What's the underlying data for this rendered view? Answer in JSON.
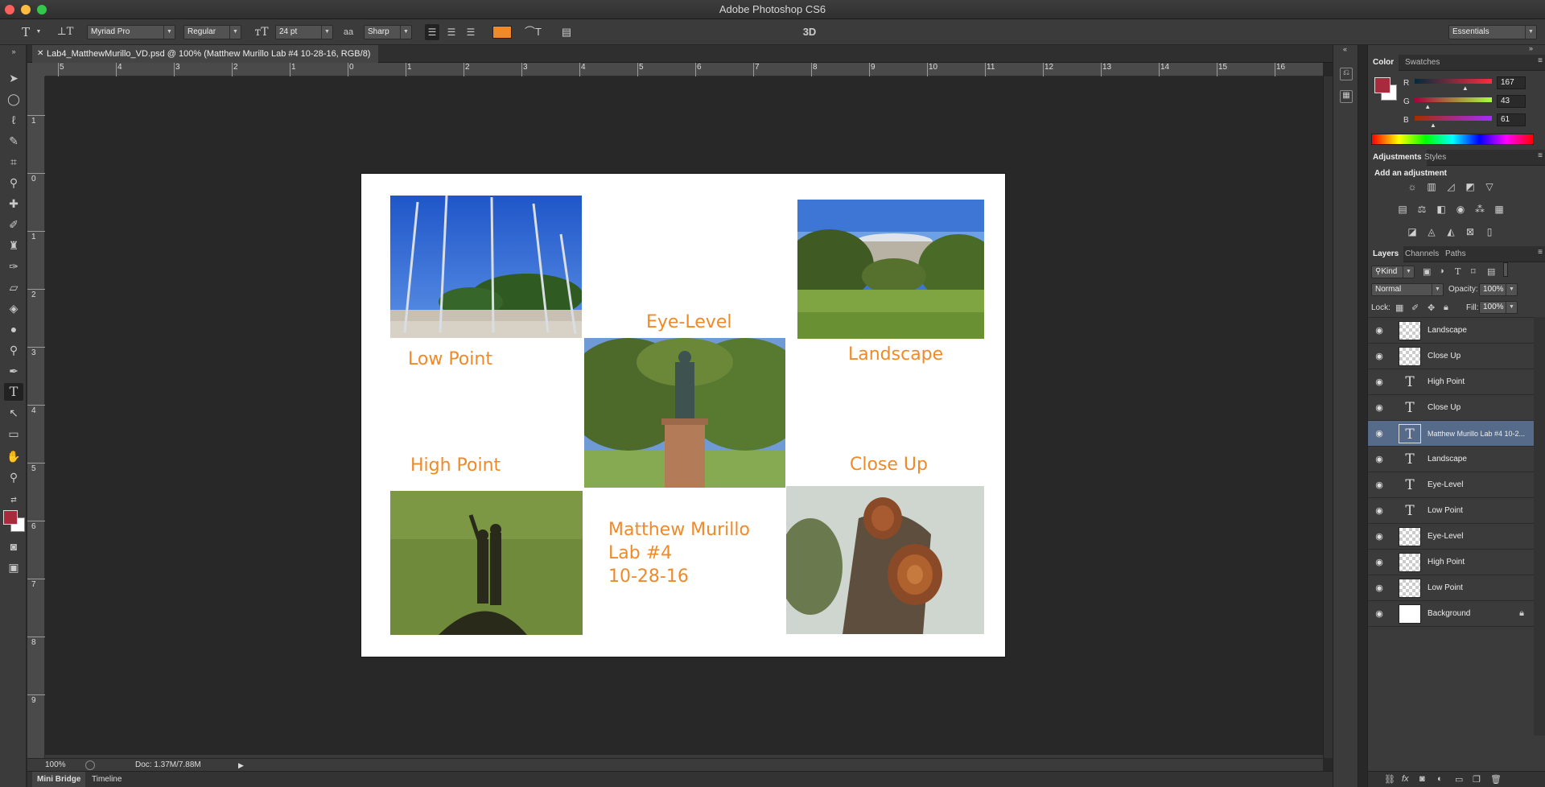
{
  "window": {
    "title": "Adobe Photoshop CS6"
  },
  "options_bar": {
    "font_family": "Myriad Pro",
    "font_style": "Regular",
    "font_size": "24 pt",
    "antialias_icon_label": "aa",
    "antialias": "Sharp",
    "color_swatch": "#f08a28",
    "mode_3d": "3D",
    "workspace": "Essentials"
  },
  "document": {
    "tab_title": "Lab4_MatthewMurillo_VD.psd @ 100% (Matthew Murillo Lab #4 10-28-16, RGB/8)",
    "ruler_top": [
      "5",
      "4",
      "3",
      "2",
      "1",
      "0",
      "1",
      "2",
      "3",
      "4",
      "5",
      "6",
      "7",
      "8",
      "9",
      "10",
      "11",
      "12",
      "13",
      "14",
      "15",
      "16"
    ],
    "ruler_left": [
      "1",
      "0",
      "1",
      "2",
      "3",
      "4",
      "5",
      "6",
      "7",
      "8",
      "9"
    ]
  },
  "artboard": {
    "captions": {
      "low_point": "Low Point",
      "eye_level": "Eye-Level",
      "landscape": "Landscape",
      "high_point": "High Point",
      "close_up": "Close Up",
      "signature_line1": "Matthew Murillo",
      "signature_line2": "Lab #4",
      "signature_line3": "10-28-16"
    },
    "caption_color": "#f08a28"
  },
  "status": {
    "zoom": "100%",
    "doc_size": "Doc: 1.37M/7.88M"
  },
  "bottom_tabs": {
    "mini_bridge": "Mini Bridge",
    "timeline": "Timeline"
  },
  "color_panel": {
    "tabs": [
      "Color",
      "Swatches"
    ],
    "foreground": "#a72b3d",
    "r_label": "R",
    "g_label": "G",
    "b_label": "B",
    "r": 167,
    "g": 43,
    "b": 61
  },
  "adjustments_panel": {
    "tabs": [
      "Adjustments",
      "Styles"
    ],
    "heading": "Add an adjustment"
  },
  "layers_panel": {
    "tabs": [
      "Layers",
      "Channels",
      "Paths"
    ],
    "filter_kind": "Kind",
    "blend_mode": "Normal",
    "opacity_label": "Opacity:",
    "opacity": "100%",
    "lock_label": "Lock:",
    "fill_label": "Fill:",
    "fill": "100%",
    "layers": [
      {
        "name": "Landscape",
        "kind": "smart"
      },
      {
        "name": "Close Up",
        "kind": "smart"
      },
      {
        "name": "High Point",
        "kind": "text"
      },
      {
        "name": "Close Up",
        "kind": "text"
      },
      {
        "name": "Matthew Murillo Lab #4 10-2...",
        "kind": "text",
        "selected": true
      },
      {
        "name": "Landscape",
        "kind": "text"
      },
      {
        "name": "Eye-Level",
        "kind": "text"
      },
      {
        "name": "Low Point",
        "kind": "text"
      },
      {
        "name": "Eye-Level",
        "kind": "smart"
      },
      {
        "name": "High Point",
        "kind": "smart"
      },
      {
        "name": "Low Point",
        "kind": "smart"
      },
      {
        "name": "Background",
        "kind": "background"
      }
    ]
  }
}
